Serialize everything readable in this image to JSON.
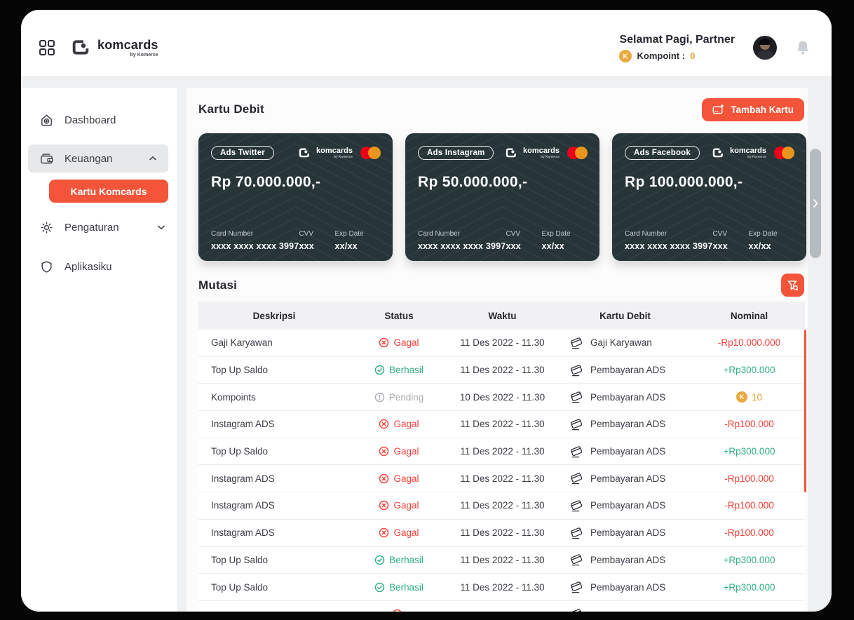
{
  "brand": {
    "name": "komcards",
    "byline": "by Komerce"
  },
  "header": {
    "greeting": "Selamat Pagi, Partner",
    "kompoint_label": "Kompoint :",
    "kompoint_value": "0"
  },
  "sidebar": {
    "items": [
      {
        "label": "Dashboard",
        "icon": "home-icon"
      },
      {
        "label": "Keuangan",
        "icon": "wallet-icon",
        "expanded": true
      },
      {
        "label": "Kartu Komcards",
        "active": true
      },
      {
        "label": "Pengaturan",
        "icon": "gear-icon",
        "collapsed": true
      },
      {
        "label": "Aplikasiku",
        "icon": "shield-icon"
      }
    ]
  },
  "main": {
    "cards_title": "Kartu Debit",
    "add_card_label": "Tambah Kartu",
    "card_field_labels": {
      "card_number": "Card Number",
      "cvv": "CVV",
      "exp": "Exp Date"
    },
    "cards": [
      {
        "tag": "Ads Twitter",
        "balance": "Rp 70.000.000,-",
        "card_number": "xxxx xxxx xxxx 3997",
        "cvv": "xxx",
        "exp": "xx/xx"
      },
      {
        "tag": "Ads Instagram",
        "balance": "Rp 50.000.000,-",
        "card_number": "xxxx xxxx xxxx 3997",
        "cvv": "xxx",
        "exp": "xx/xx"
      },
      {
        "tag": "Ads Facebook",
        "balance": "Rp 100.000.000,-",
        "card_number": "xxxx xxxx xxxx 3997",
        "cvv": "xxx",
        "exp": "xx/xx"
      }
    ],
    "mutasi_title": "Mutasi",
    "table": {
      "columns": [
        "Deskripsi",
        "Status",
        "Waktu",
        "Kartu Debit",
        "Nominal"
      ],
      "rows": [
        {
          "desc": "Gaji Karyawan",
          "status": "Gagal",
          "status_type": "gagal",
          "waktu": "11 Des 2022 - 11.30",
          "kartu": "Gaji Karyawan",
          "nominal": "-Rp10.000.000",
          "nominal_type": "negative"
        },
        {
          "desc": "Top Up Saldo",
          "status": "Berhasil",
          "status_type": "berhasil",
          "waktu": "11 Des 2022 - 11.30",
          "kartu": "Pembayaran ADS",
          "nominal": "+Rp300.000",
          "nominal_type": "positive"
        },
        {
          "desc": "Kompoints",
          "status": "Pending",
          "status_type": "pending",
          "waktu": "10 Des 2022 - 11.30",
          "kartu": "Pembayaran ADS",
          "nominal": "10",
          "nominal_type": "kompoint"
        },
        {
          "desc": "Instagram ADS",
          "status": "Gagal",
          "status_type": "gagal",
          "waktu": "11 Des 2022 - 11.30",
          "kartu": "Pembayaran ADS",
          "nominal": "-Rp100.000",
          "nominal_type": "negative"
        },
        {
          "desc": "Top Up Saldo",
          "status": "Gagal",
          "status_type": "gagal",
          "waktu": "11 Des 2022 - 11.30",
          "kartu": "Pembayaran ADS",
          "nominal": "+Rp300.000",
          "nominal_type": "positive"
        },
        {
          "desc": "Instagram ADS",
          "status": "Gagal",
          "status_type": "gagal",
          "waktu": "11 Des 2022 - 11.30",
          "kartu": "Pembayaran ADS",
          "nominal": "-Rp100.000",
          "nominal_type": "negative"
        },
        {
          "desc": "Instagram ADS",
          "status": "Gagal",
          "status_type": "gagal",
          "waktu": "11 Des 2022 - 11.30",
          "kartu": "Pembayaran ADS",
          "nominal": "-Rp100.000",
          "nominal_type": "negative"
        },
        {
          "desc": "Instagram ADS",
          "status": "Gagal",
          "status_type": "gagal",
          "waktu": "11 Des 2022 - 11.30",
          "kartu": "Pembayaran ADS",
          "nominal": "-Rp100.000",
          "nominal_type": "negative"
        },
        {
          "desc": "Top Up Saldo",
          "status": "Berhasil",
          "status_type": "berhasil",
          "waktu": "11 Des 2022 - 11.30",
          "kartu": "Pembayaran ADS",
          "nominal": "+Rp300.000",
          "nominal_type": "positive"
        },
        {
          "desc": "Top Up Saldo",
          "status": "Berhasil",
          "status_type": "berhasil",
          "waktu": "11 Des 2022 - 11.30",
          "kartu": "Pembayaran ADS",
          "nominal": "+Rp300.000",
          "nominal_type": "positive"
        },
        {
          "desc": "",
          "status": "",
          "status_type": "gagal",
          "waktu": "",
          "kartu": "",
          "nominal": "",
          "nominal_type": "negative"
        }
      ]
    }
  },
  "colors": {
    "accent": "#F4553A",
    "green": "#2EAF7D",
    "red": "#F43F36",
    "pending": "#A9ACB0",
    "gold": "#E0A32C",
    "coin": "#EAA93C",
    "card_bg": "#273539"
  }
}
